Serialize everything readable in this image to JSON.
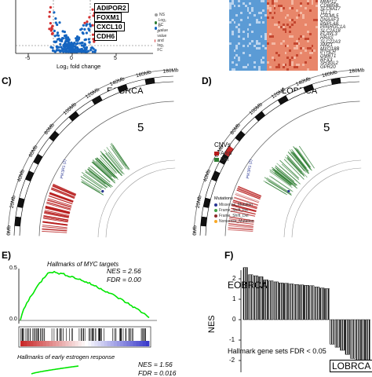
{
  "panel_a": {
    "highlighted_genes": [
      "ADIPOR2",
      "FOXM1",
      "CXCL10",
      "CDH6"
    ],
    "x_axis_title": "Log₂ fold change",
    "x_ticks": [
      "-5",
      "0",
      "5"
    ],
    "legend": [
      "NS",
      "Log₂ FC",
      "p-value",
      "p-value and log₂ FC"
    ],
    "colors": {
      "ns": "#9e9e9e",
      "fc": "#2e7d32",
      "p": "#1565c0",
      "both": "#d32f2f"
    }
  },
  "panel_b": {
    "genes": [
      "MMP12",
      "CD8B5B",
      "SLC6A17",
      "TLL1",
      "CALML5",
      "DNAAF3",
      "PNPLA8",
      "PPARGC1A",
      "SLC2A18",
      "ELAVL3",
      "HRAS",
      "SLC22A3",
      "AMZ1",
      "MYO18B",
      "PTHLH",
      "DMBT1",
      "RFX3",
      "SH3GL2",
      "GPR20"
    ],
    "colors": {
      "low": "#5b9bd5",
      "high": "#e8866a"
    }
  },
  "panel_c": {
    "letter": "C)",
    "title": "EOBRCA",
    "chromosome": "5",
    "position_labels": [
      "0Mb",
      "20Mb",
      "40Mb",
      "60Mb",
      "80Mb",
      "100Mb",
      "120Mb",
      "140Mb",
      "160Mb",
      "180Mb"
    ],
    "gene_label": "PIK3R1 (2)"
  },
  "panel_d": {
    "letter": "D)",
    "title": "LOBRCA",
    "chromosome": "5",
    "position_labels": [
      "0Mb",
      "20Mb",
      "40Mb",
      "60Mb",
      "80Mb",
      "100Mb",
      "120Mb",
      "140Mb",
      "160Mb",
      "180Mb"
    ],
    "gene_label": "PIK3R1 (2)",
    "cnv_title": "CNVs",
    "cnv_legend": [
      {
        "label": "Amp",
        "color": "#b71c1c"
      },
      {
        "label": "Del",
        "color": "#2e7d32"
      }
    ],
    "mutation_title": "Mutations",
    "mutation_legend": [
      {
        "label": "Missense_Mutation",
        "color": "#283593"
      },
      {
        "label": "Frame_Shift_Ins",
        "color": "#43a047"
      },
      {
        "label": "Frame_Shift_Del",
        "color": "#8d2a2a"
      },
      {
        "label": "Nonsense_Mutation",
        "color": "#f9a825"
      }
    ]
  },
  "panel_e": {
    "letter": "E)",
    "gsea1": {
      "title": "Hallmarks of MYC targets",
      "nes": "NES = 2.56",
      "fdr": "FDR = 0.00",
      "y_ticks": [
        "0.5",
        "0.0"
      ]
    },
    "gsea2": {
      "title": "Hallmarks of early estrogen response",
      "nes": "NES = 1.56",
      "fdr": "FDR = 0.016"
    }
  },
  "panel_f": {
    "letter": "F)",
    "group_top": "EOBRCA",
    "group_bottom": "LOBRCA",
    "y_axis_title": "NES",
    "y_ticks": [
      "2",
      "1",
      "0",
      "-1",
      "-2"
    ],
    "note": "Hallmark gene sets FDR < 0.05",
    "chart_data": {
      "type": "bar",
      "ylabel": "NES",
      "ylim": [
        -2.4,
        2.4
      ],
      "values": [
        2.55,
        2.2,
        2.15,
        2.1,
        1.95,
        1.9,
        1.85,
        1.8,
        1.78,
        1.75,
        1.72,
        1.7,
        1.68,
        1.66,
        1.6,
        1.55,
        1.52,
        -1.2,
        -1.35,
        -1.5,
        -1.7,
        -1.9,
        -2.05,
        -2.15,
        -2.3
      ]
    }
  }
}
